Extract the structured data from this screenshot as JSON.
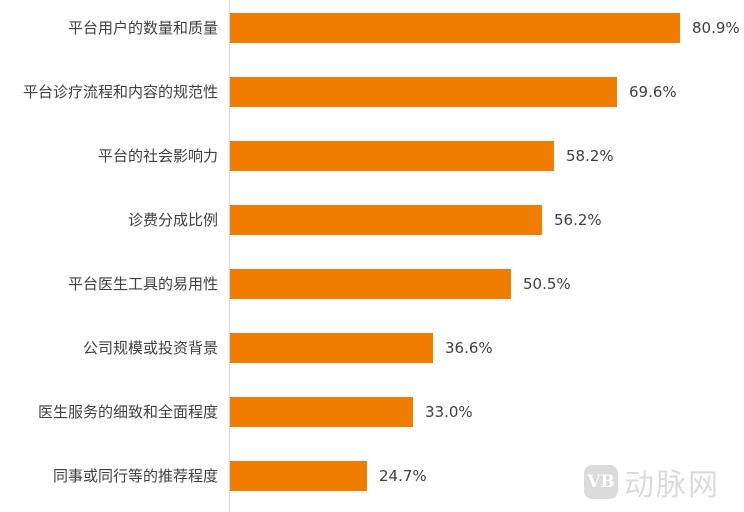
{
  "chart_data": {
    "type": "bar",
    "orientation": "horizontal",
    "title": "",
    "xlabel": "",
    "ylabel": "",
    "grid": false,
    "legend": null,
    "xlim": [
      0,
      100
    ],
    "categories": [
      "平台用户的数量和质量",
      "平台诊疗流程和内容的规范性",
      "平台的社会影响力",
      "诊费分成比例",
      "平台医生工具的易用性",
      "公司规模或投资背景",
      "医生服务的细致和全面程度",
      "同事或同行等的推荐程度"
    ],
    "values": [
      80.9,
      69.6,
      58.2,
      56.2,
      50.5,
      36.6,
      33.0,
      24.7
    ],
    "value_labels": [
      "80.9%",
      "69.6%",
      "58.2%",
      "56.2%",
      "50.5%",
      "36.6%",
      "33.0%",
      "24.7%"
    ],
    "bar_color": "#ef7d00"
  },
  "watermark": {
    "logo": "VB",
    "text": "动脉网"
  }
}
